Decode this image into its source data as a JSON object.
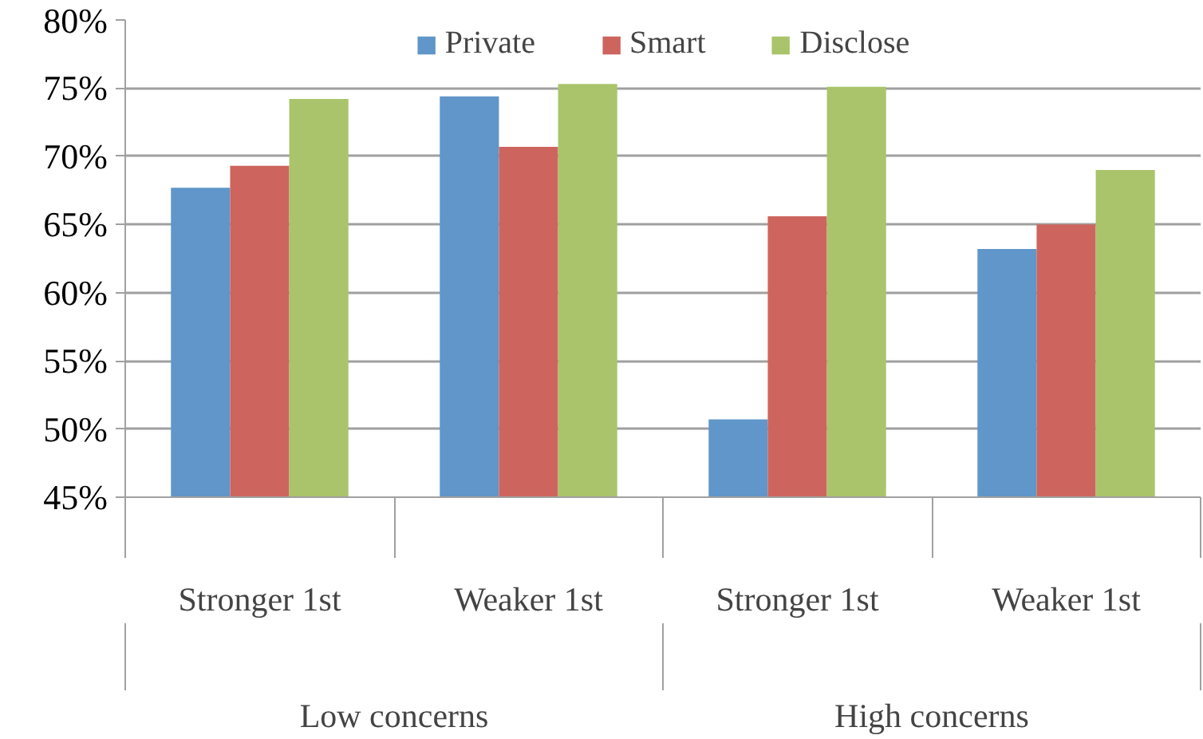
{
  "chart_data": {
    "type": "bar",
    "categories": [
      "Stronger 1st",
      "Weaker 1st",
      "Stronger 1st",
      "Weaker 1st"
    ],
    "annotations": [
      "Low concerns",
      "High concerns"
    ],
    "series": [
      {
        "name": "Private",
        "color": "#6096c9",
        "values": [
          67.7,
          74.4,
          50.7,
          63.2
        ]
      },
      {
        "name": "Smart",
        "color": "#cd655e",
        "values": [
          69.3,
          70.7,
          65.6,
          65.0
        ]
      },
      {
        "name": "Disclose",
        "color": "#a9c46a",
        "values": [
          74.2,
          75.3,
          75.1,
          69.0
        ]
      }
    ],
    "ylim": [
      45,
      80
    ],
    "yticks": [
      {
        "value": 45,
        "label": "45%"
      },
      {
        "value": 50,
        "label": "50%"
      },
      {
        "value": 55,
        "label": "55%"
      },
      {
        "value": 60,
        "label": "60%"
      },
      {
        "value": 65,
        "label": "65%"
      },
      {
        "value": 70,
        "label": "70%"
      },
      {
        "value": 75,
        "label": "75%"
      },
      {
        "value": 80,
        "label": "80%"
      }
    ],
    "grid": "y",
    "legend": "top"
  }
}
